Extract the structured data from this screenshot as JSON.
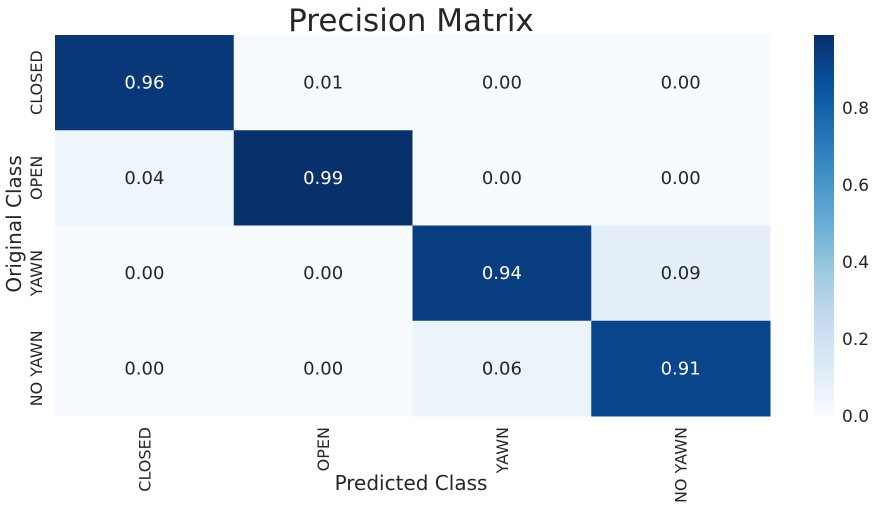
{
  "chart_data": {
    "type": "heatmap",
    "title": "Precision Matrix",
    "xlabel": "Predicted Class",
    "ylabel": "Original Class",
    "x_categories": [
      "CLOSED",
      "OPEN",
      "YAWN",
      "NO YAWN"
    ],
    "y_categories": [
      "CLOSED",
      "OPEN",
      "YAWN",
      "NO YAWN"
    ],
    "values": [
      [
        0.96,
        0.01,
        0.0,
        0.0
      ],
      [
        0.04,
        0.99,
        0.0,
        0.0
      ],
      [
        0.0,
        0.0,
        0.94,
        0.09
      ],
      [
        0.0,
        0.0,
        0.06,
        0.91
      ]
    ],
    "annotations": [
      [
        "0.96",
        "0.01",
        "0.00",
        "0.00"
      ],
      [
        "0.04",
        "0.99",
        "0.00",
        "0.00"
      ],
      [
        "0.00",
        "0.00",
        "0.94",
        "0.09"
      ],
      [
        "0.00",
        "0.00",
        "0.06",
        "0.91"
      ]
    ],
    "colormap": "Blues",
    "colorbar": {
      "vmin": 0.0,
      "vmax": 0.99,
      "ticks": [
        0.0,
        0.2,
        0.4,
        0.6,
        0.8
      ],
      "tick_labels": [
        "0.0",
        "0.2",
        "0.4",
        "0.6",
        "0.8"
      ]
    },
    "grid": false
  }
}
